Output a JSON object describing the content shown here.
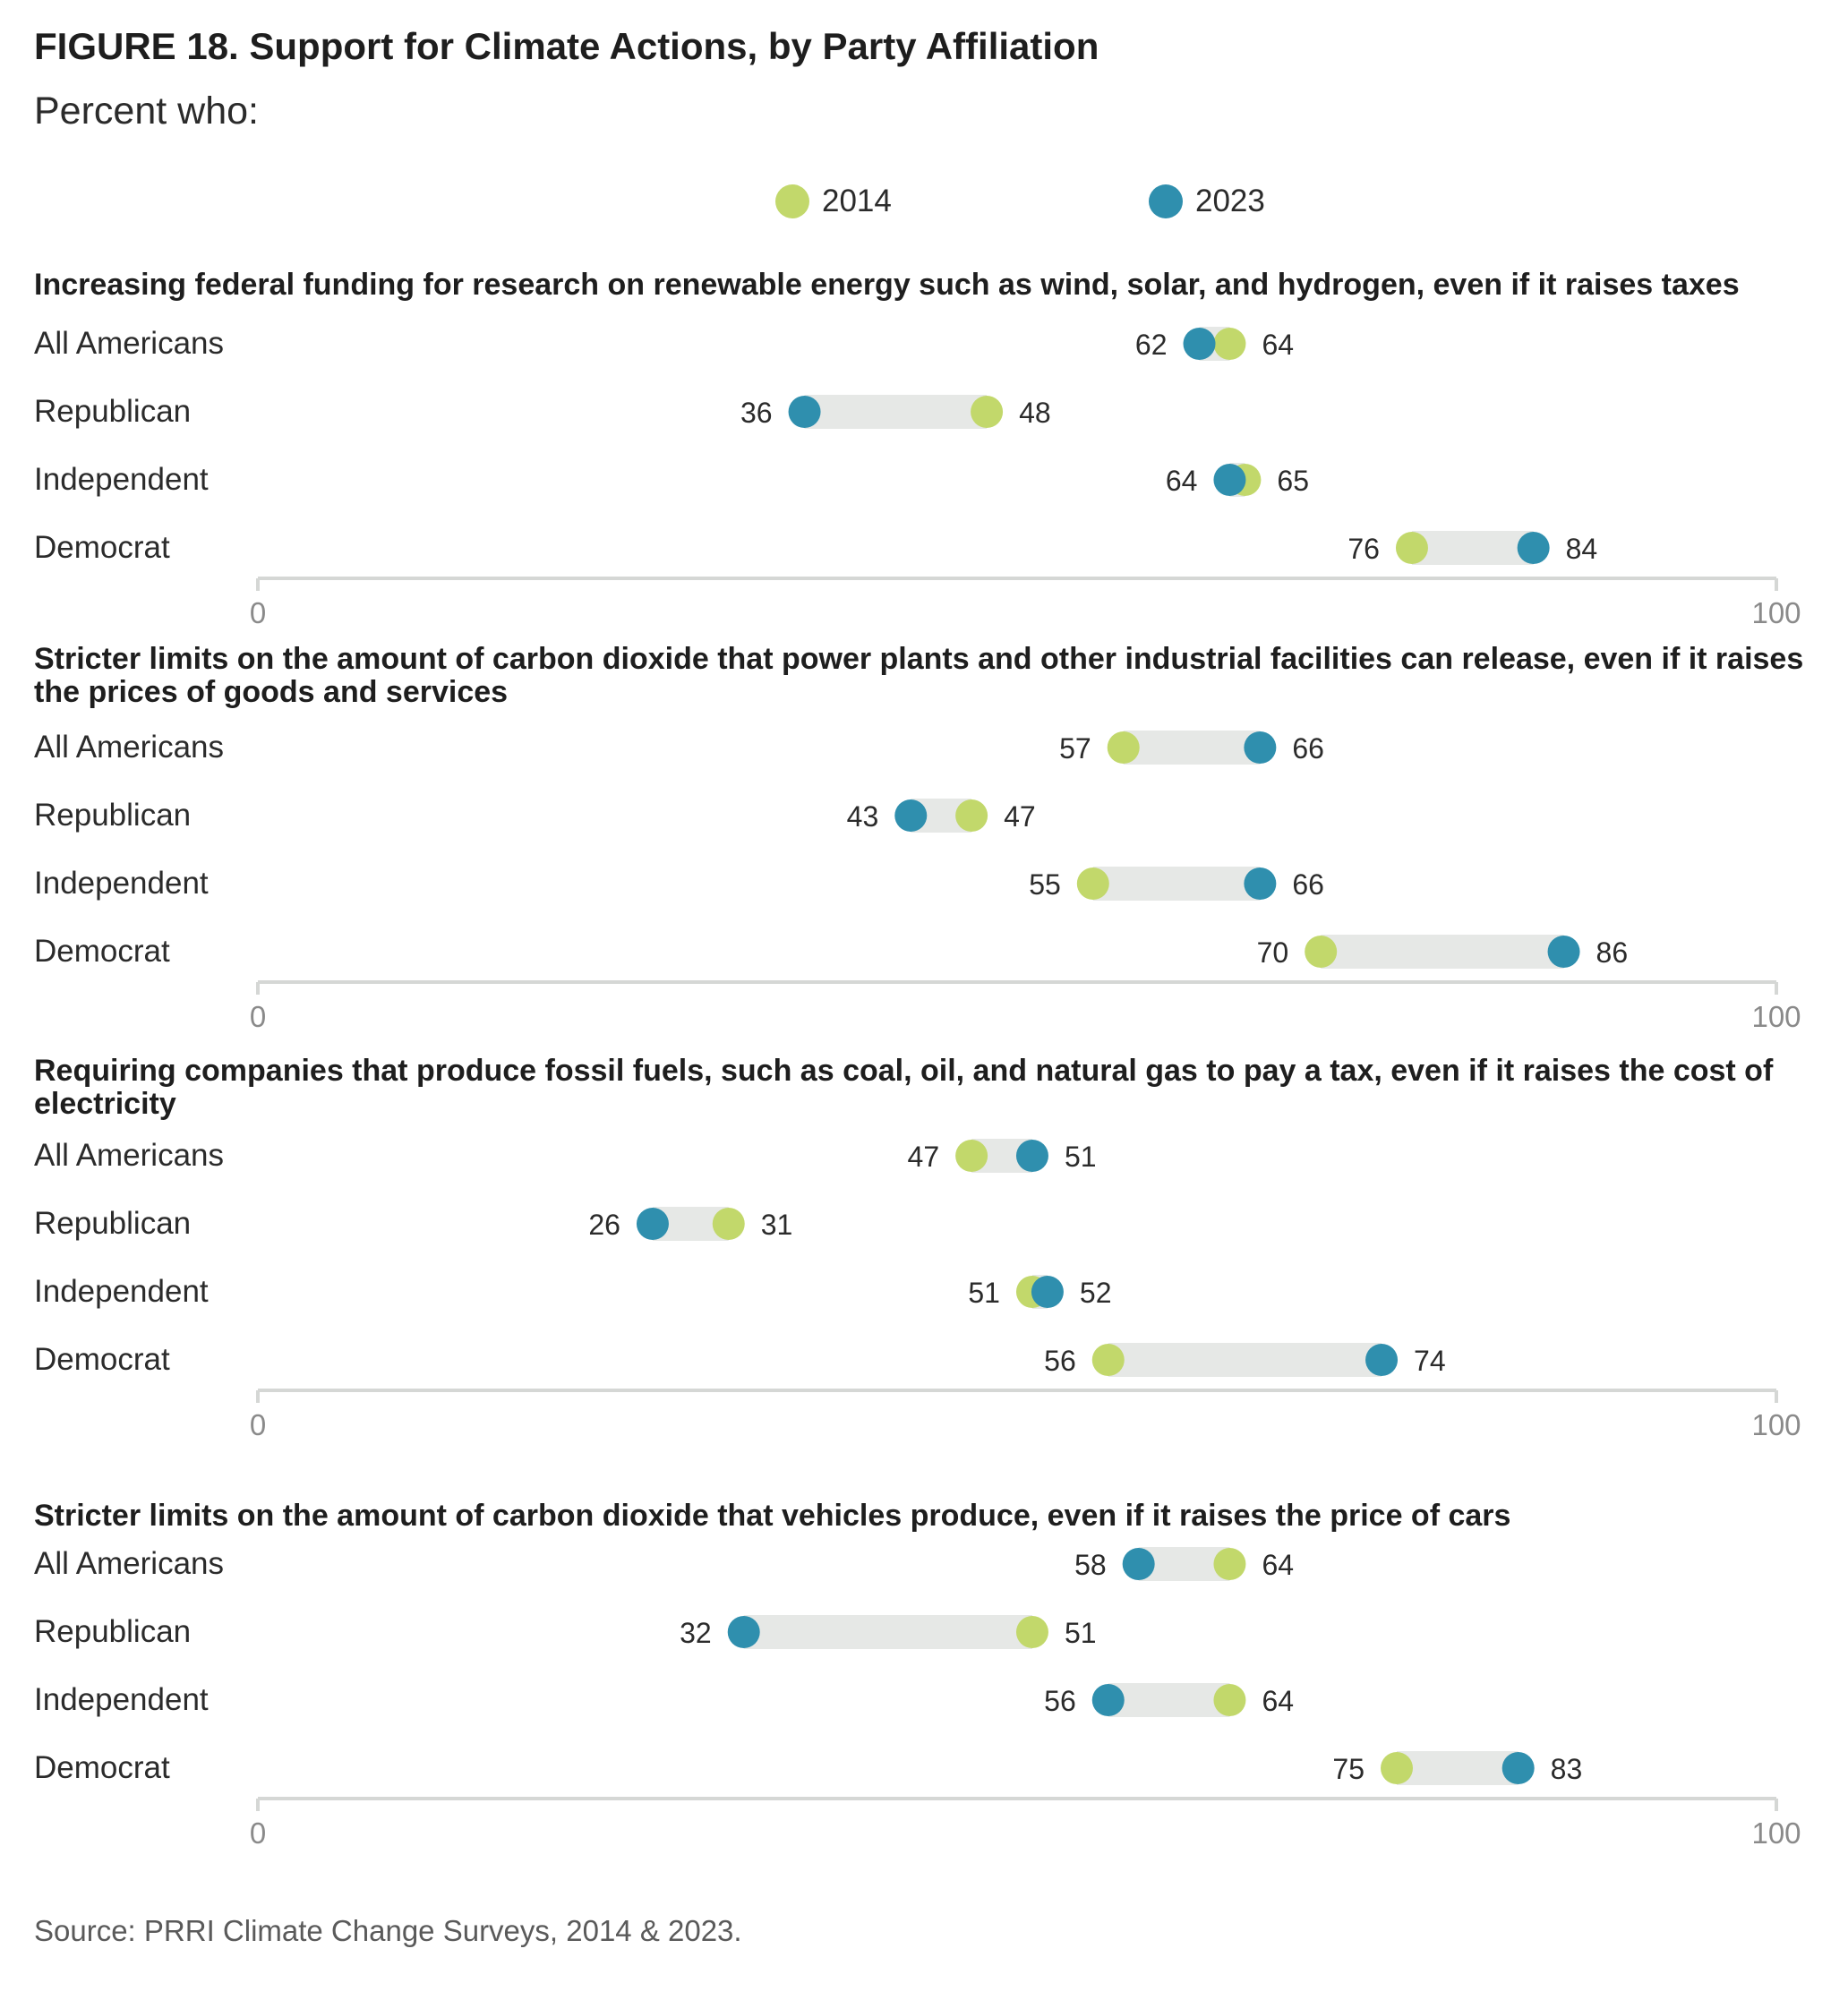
{
  "title": "FIGURE 18.  Support for Climate Actions, by Party Affiliation",
  "subtitle": "Percent who:",
  "legend": [
    {
      "label": "2014",
      "color": "#c2d86b"
    },
    {
      "label": "2023",
      "color": "#2f8fae"
    }
  ],
  "source": "Source: PRRI Climate Change Surveys, 2014 & 2023.",
  "chart_data": [
    {
      "type": "dumbbell",
      "title": "Increasing federal funding for research on renewable energy such as wind, solar, and hydrogen, even if it raises taxes",
      "categories": [
        "All Americans",
        "Republican",
        "Independent",
        "Democrat"
      ],
      "series": [
        {
          "name": "2014",
          "values": [
            64,
            48,
            65,
            76
          ]
        },
        {
          "name": "2023",
          "values": [
            62,
            36,
            64,
            84
          ]
        }
      ],
      "xlim": [
        0,
        100
      ],
      "xticks": [
        "0",
        "100"
      ]
    },
    {
      "type": "dumbbell",
      "title": "Stricter limits on the amount of carbon dioxide that power plants and other industrial facilities can release, even if it raises the prices of goods and services",
      "categories": [
        "All Americans",
        "Republican",
        "Independent",
        "Democrat"
      ],
      "series": [
        {
          "name": "2014",
          "values": [
            57,
            47,
            55,
            70
          ]
        },
        {
          "name": "2023",
          "values": [
            66,
            43,
            66,
            86
          ]
        }
      ],
      "xlim": [
        0,
        100
      ],
      "xticks": [
        "0",
        "100"
      ]
    },
    {
      "type": "dumbbell",
      "title": "Requiring companies that produce fossil fuels, such as coal, oil, and natural gas to pay a tax, even if it raises the cost of electricity",
      "categories": [
        "All Americans",
        "Republican",
        "Independent",
        "Democrat"
      ],
      "series": [
        {
          "name": "2014",
          "values": [
            47,
            31,
            51,
            56
          ]
        },
        {
          "name": "2023",
          "values": [
            51,
            26,
            52,
            74
          ]
        }
      ],
      "xlim": [
        0,
        100
      ],
      "xticks": [
        "0",
        "100"
      ]
    },
    {
      "type": "dumbbell",
      "title": "Stricter limits on the amount of carbon dioxide that vehicles produce, even if it raises the price of cars",
      "categories": [
        "All Americans",
        "Republican",
        "Independent",
        "Democrat"
      ],
      "series": [
        {
          "name": "2014",
          "values": [
            64,
            51,
            64,
            75
          ]
        },
        {
          "name": "2023",
          "values": [
            58,
            32,
            56,
            83
          ]
        }
      ],
      "xlim": [
        0,
        100
      ],
      "xticks": [
        "0",
        "100"
      ]
    }
  ]
}
